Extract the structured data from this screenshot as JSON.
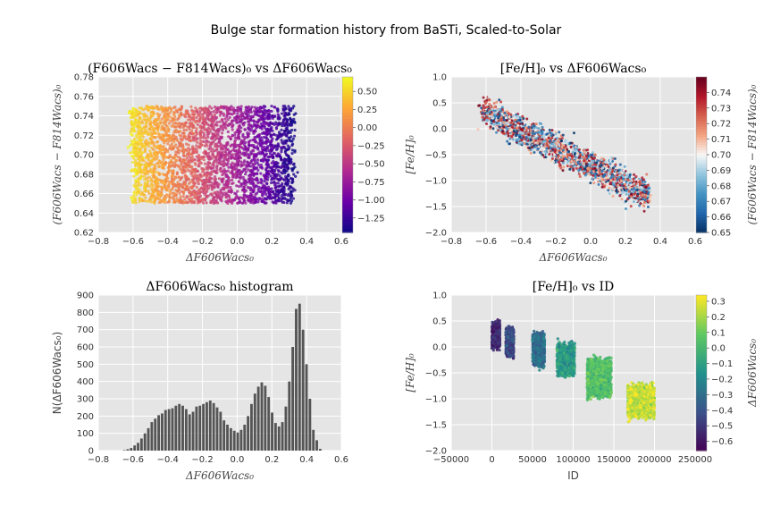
{
  "suptitle": "Bulge star formation history from BaSTi, Scaled-to-Solar",
  "colormaps": {
    "plasma": [
      "#0d0887",
      "#6a00a8",
      "#b12a90",
      "#e16462",
      "#fca636",
      "#f0f921"
    ],
    "rdbu_r": [
      "#053061",
      "#2166ac",
      "#4393c3",
      "#92c5de",
      "#f7f7f7",
      "#f4a582",
      "#d6604d",
      "#b2182b",
      "#67001f"
    ],
    "viridis": [
      "#440154",
      "#3b528b",
      "#21918c",
      "#5ec962",
      "#fde725"
    ],
    "histogram_bar": "#555555",
    "axes_bg": "#e5e5e5",
    "grid": "#ffffff"
  },
  "chart_data": [
    {
      "id": "p1",
      "type": "scatter",
      "title": "(F606Wacs − F814Wacs)₀ vs ΔF606Wacs₀",
      "xlabel": "ΔF606Wacs₀",
      "ylabel": "(F606Wacs − F814Wacs)₀",
      "xlim": [
        -0.8,
        0.6
      ],
      "ylim": [
        0.62,
        0.78
      ],
      "xticks": [
        "-0.8",
        "-0.6",
        "-0.4",
        "-0.2",
        "0.0",
        "0.2",
        "0.4",
        "0.6"
      ],
      "yticks": [
        "0.62",
        "0.64",
        "0.66",
        "0.68",
        "0.70",
        "0.72",
        "0.74",
        "0.76",
        "0.78"
      ],
      "grid": true,
      "color_by": "y_value_of_dF606",
      "colormap": "plasma",
      "colorbar": {
        "range": [
          -1.45,
          0.7
        ],
        "ticks": [
          "0.50",
          "0.25",
          "0.00",
          "-0.25",
          "-0.50",
          "-0.75",
          "-1.00",
          "-1.25"
        ],
        "tick_values": [
          0.5,
          0.25,
          0.0,
          -0.25,
          -0.5,
          -0.75,
          -1.0,
          -1.25
        ],
        "label": ""
      },
      "distribution": {
        "x_range": [
          -0.62,
          0.33
        ],
        "y_range": [
          0.65,
          0.75
        ],
        "n_points": 3200
      }
    },
    {
      "id": "p2",
      "type": "scatter",
      "title": "[Fe/H]₀ vs ΔF606Wacs₀",
      "xlabel": "ΔF606Wacs₀",
      "ylabel": "[Fe/H]₀",
      "xlim": [
        -0.8,
        0.6
      ],
      "ylim": [
        -2.0,
        1.0
      ],
      "xticks": [
        "-0.8",
        "-0.6",
        "-0.4",
        "-0.2",
        "0.0",
        "0.2",
        "0.4",
        "0.6"
      ],
      "yticks": [
        "-2.0",
        "-1.5",
        "-1.0",
        "-0.5",
        "0.0",
        "0.5",
        "1.0"
      ],
      "grid": true,
      "colormap": "rdbu_r",
      "colorbar": {
        "label": "(F606Wacs − F814Wacs)₀",
        "range": [
          0.65,
          0.75
        ],
        "ticks": [
          "0.74",
          "0.73",
          "0.72",
          "0.71",
          "0.70",
          "0.69",
          "0.68",
          "0.67",
          "0.66",
          "0.65"
        ],
        "tick_values": [
          0.74,
          0.73,
          0.72,
          0.71,
          0.7,
          0.69,
          0.68,
          0.67,
          0.66,
          0.65
        ]
      },
      "trend": {
        "x": [
          -0.62,
          0.33
        ],
        "y": [
          0.35,
          -1.3
        ],
        "spread": 0.13,
        "n_points": 2200
      }
    },
    {
      "id": "p3",
      "type": "bar",
      "title": "ΔF606Wacs₀ histogram",
      "xlabel": "ΔF606Wacs₀",
      "ylabel": "N(ΔF606Wacs₀)",
      "xlim": [
        -0.8,
        0.6
      ],
      "ylim": [
        0,
        900
      ],
      "xticks": [
        "-0.8",
        "-0.6",
        "-0.4",
        "-0.2",
        "0.0",
        "0.2",
        "0.4",
        "0.6"
      ],
      "yticks": [
        "0",
        "100",
        "200",
        "300",
        "400",
        "500",
        "600",
        "700",
        "800",
        "900"
      ],
      "grid": true,
      "bin_start": -0.66,
      "bin_width": 0.0198,
      "values": [
        3,
        8,
        15,
        30,
        45,
        70,
        100,
        130,
        165,
        185,
        205,
        215,
        235,
        240,
        245,
        260,
        270,
        260,
        240,
        210,
        225,
        255,
        260,
        270,
        280,
        290,
        275,
        250,
        225,
        175,
        150,
        130,
        115,
        105,
        120,
        150,
        200,
        270,
        330,
        370,
        395,
        375,
        310,
        220,
        160,
        140,
        165,
        255,
        400,
        600,
        820,
        850,
        700,
        500,
        300,
        120,
        60,
        10
      ]
    },
    {
      "id": "p4",
      "type": "scatter",
      "title": "[Fe/H]₀ vs ID",
      "xlabel": "ID",
      "ylabel": "[Fe/H]₀",
      "xlim": [
        -50000,
        250000
      ],
      "ylim": [
        -2.0,
        1.0
      ],
      "xticks": [
        "-50000",
        "0",
        "50000",
        "100000",
        "150000",
        "200000",
        "250000"
      ],
      "yticks": [
        "-2.0",
        "-1.5",
        "-1.0",
        "-0.5",
        "0.0",
        "0.5",
        "1.0"
      ],
      "grid": true,
      "colormap": "viridis",
      "colorbar": {
        "label": "ΔF606Wacs₀",
        "range": [
          -0.66,
          0.34
        ],
        "ticks": [
          "0.3",
          "0.2",
          "0.1",
          "0.0",
          "-0.1",
          "-0.2",
          "-0.3",
          "-0.4",
          "-0.5",
          "-0.6"
        ],
        "tick_values": [
          0.3,
          0.2,
          0.1,
          0.0,
          -0.1,
          -0.2,
          -0.3,
          -0.4,
          -0.5,
          -0.6
        ]
      },
      "clusters": [
        {
          "id_range": [
            0,
            10000
          ],
          "feh_center": 0.22,
          "feh_spread": 0.22,
          "color_val": -0.55,
          "n": 420
        },
        {
          "id_range": [
            17000,
            27000
          ],
          "feh_center": 0.08,
          "feh_spread": 0.25,
          "color_val": -0.45,
          "n": 450
        },
        {
          "id_range": [
            50000,
            65000
          ],
          "feh_center": -0.05,
          "feh_spread": 0.3,
          "color_val": -0.3,
          "n": 520
        },
        {
          "id_range": [
            80000,
            102000
          ],
          "feh_center": -0.25,
          "feh_spread": 0.3,
          "color_val": -0.12,
          "n": 650
        },
        {
          "id_range": [
            117000,
            147000
          ],
          "feh_center": -0.6,
          "feh_spread": 0.35,
          "color_val": 0.05,
          "n": 900
        },
        {
          "id_range": [
            167000,
            200000
          ],
          "feh_center": -1.05,
          "feh_spread": 0.3,
          "color_val": 0.25,
          "n": 1000
        }
      ]
    }
  ]
}
